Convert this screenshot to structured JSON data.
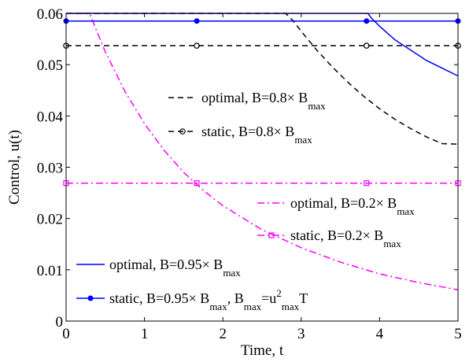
{
  "chart_data": {
    "type": "line",
    "xlabel": "Time, t",
    "ylabel": "Control, u(t)",
    "xlim": [
      0,
      5
    ],
    "ylim": [
      0,
      0.06
    ],
    "xticks": [
      0,
      1,
      2,
      3,
      4,
      5
    ],
    "yticks": [
      0,
      0.01,
      0.02,
      0.03,
      0.04,
      0.05,
      0.06
    ],
    "xtick_labels": [
      "0",
      "1",
      "2",
      "3",
      "4",
      "5"
    ],
    "ytick_labels": [
      "0",
      "0.01",
      "0.02",
      "0.03",
      "0.04",
      "0.05",
      "0.06"
    ],
    "grid": false,
    "series": [
      {
        "name": "optimal, B=0.8× B_max",
        "color": "#000000",
        "style": "dashed",
        "marker": "none",
        "x": [
          0,
          2.8,
          2.9,
          3.0,
          3.2,
          3.4,
          3.6,
          3.8,
          4.0,
          4.2,
          4.4,
          4.6,
          4.8,
          5.0
        ],
        "y": [
          0.06,
          0.06,
          0.0585,
          0.0565,
          0.0528,
          0.0495,
          0.0465,
          0.0438,
          0.0414,
          0.0393,
          0.0375,
          0.0359,
          0.0346,
          0.0345
        ]
      },
      {
        "name": "static, B=0.8× B_max",
        "color": "#000000",
        "style": "dashed",
        "marker": "circle-open",
        "x": [
          0,
          5
        ],
        "y": [
          0.0537,
          0.0537
        ],
        "markers_x": [
          0,
          1.667,
          3.833,
          5
        ],
        "markers_y": [
          0.0537,
          0.0537,
          0.0537,
          0.0537
        ]
      },
      {
        "name": "optimal, B=0.2× B_max",
        "color": "#ff00ff",
        "style": "dashdot",
        "marker": "none",
        "x": [
          0,
          0.3,
          0.5,
          0.75,
          1.0,
          1.25,
          1.5,
          1.75,
          2.0,
          2.5,
          3.0,
          3.5,
          4.0,
          4.5,
          5.0
        ],
        "y": [
          0.06,
          0.06,
          0.0525,
          0.0448,
          0.0385,
          0.0333,
          0.029,
          0.0255,
          0.0225,
          0.0178,
          0.0143,
          0.0115,
          0.0092,
          0.0075,
          0.0061
        ]
      },
      {
        "name": "static, B=0.2× B_max",
        "color": "#ff00ff",
        "style": "dashdot",
        "marker": "square-open",
        "x": [
          0,
          5
        ],
        "y": [
          0.0269,
          0.0269
        ],
        "markers_x": [
          0,
          1.667,
          3.833,
          5
        ],
        "markers_y": [
          0.0269,
          0.0269,
          0.0269,
          0.0269
        ]
      },
      {
        "name": "optimal, B=0.95× B_max",
        "color": "#0000ff",
        "style": "solid",
        "marker": "none",
        "x": [
          0,
          3.85,
          3.9,
          4.0,
          4.2,
          4.4,
          4.6,
          4.8,
          5.0
        ],
        "y": [
          0.06,
          0.06,
          0.059,
          0.0575,
          0.0548,
          0.0528,
          0.0508,
          0.0493,
          0.0478
        ]
      },
      {
        "name": "static, B=0.95× B_max, B_max=u²_max T",
        "color": "#0000ff",
        "style": "solid",
        "marker": "dot-filled",
        "x": [
          0,
          5
        ],
        "y": [
          0.0585,
          0.0585
        ],
        "markers_x": [
          0,
          1.667,
          3.833,
          5
        ],
        "markers_y": [
          0.0585,
          0.0585,
          0.0585,
          0.0585
        ]
      }
    ],
    "legend": [
      {
        "series": 0,
        "parts": [
          [
            "optimal, B=0.8× B",
            ""
          ],
          [
            "max",
            "sub"
          ]
        ]
      },
      {
        "series": 1,
        "parts": [
          [
            "static, B=0.8× B",
            ""
          ],
          [
            "max",
            "sub"
          ]
        ]
      },
      {
        "series": 2,
        "parts": [
          [
            "optimal, B=0.2× B",
            ""
          ],
          [
            "max",
            "sub"
          ]
        ]
      },
      {
        "series": 3,
        "parts": [
          [
            "static, B=0.2× B",
            ""
          ],
          [
            "max",
            "sub"
          ]
        ]
      },
      {
        "series": 4,
        "parts": [
          [
            "optimal, B=0.95× B",
            ""
          ],
          [
            "max",
            "sub"
          ]
        ]
      },
      {
        "series": 5,
        "parts": [
          [
            "static, B=0.95× B",
            ""
          ],
          [
            "max",
            "sub"
          ],
          [
            ", B",
            ""
          ],
          [
            "max",
            "sub"
          ],
          [
            "=u",
            ""
          ],
          [
            "2",
            "sup"
          ],
          [
            "max",
            "sub"
          ],
          [
            "T",
            ""
          ]
        ]
      }
    ]
  }
}
